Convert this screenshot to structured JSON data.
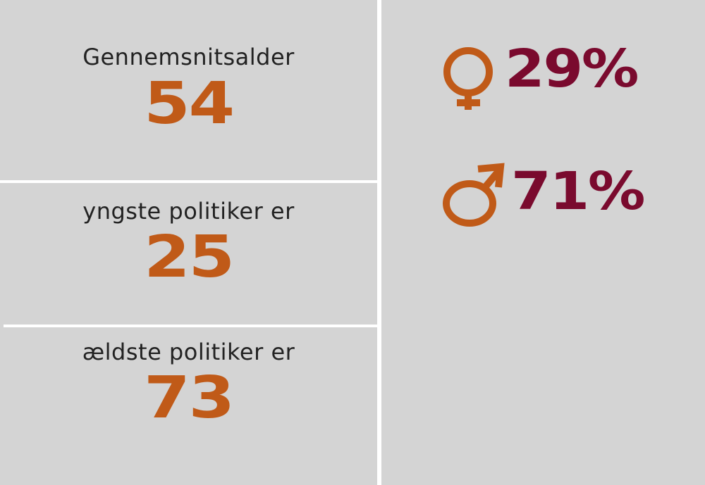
{
  "stats": [
    {
      "label": "Gennemsnitsalder",
      "value": "54"
    },
    {
      "label": "yngste politiker er",
      "value": "25"
    },
    {
      "label": "ældste politiker er",
      "value": "73"
    }
  ],
  "gender": {
    "female": "29%",
    "male": "71%"
  }
}
